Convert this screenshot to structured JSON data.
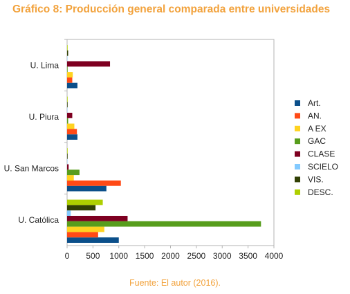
{
  "title": "Gráfico 8: Producción general comparada entre universidades",
  "source": "Fuente: El autor (2016).",
  "chart_data": {
    "type": "bar",
    "orientation": "horizontal",
    "title": "Gráfico 8: Producción general comparada entre universidades",
    "xlabel": "",
    "ylabel": "",
    "xlim": [
      0,
      4000
    ],
    "xticks": [
      0,
      500,
      1000,
      1500,
      2000,
      2500,
      3000,
      3500,
      4000
    ],
    "grid": false,
    "legend_position": "right",
    "categories": [
      "U. Católica",
      "U. San Marcos",
      "U. Piura",
      "U. Lima"
    ],
    "series": [
      {
        "name": "Art.",
        "color": "#0b4f8a",
        "values": [
          1000,
          760,
          200,
          200
        ]
      },
      {
        "name": "AN.",
        "color": "#ff4a16",
        "values": [
          600,
          1040,
          190,
          100
        ]
      },
      {
        "name": "A EX",
        "color": "#ffd320",
        "values": [
          720,
          130,
          140,
          110
        ]
      },
      {
        "name": "GAC",
        "color": "#579d1c",
        "values": [
          3750,
          240,
          20,
          10
        ]
      },
      {
        "name": "CLASE",
        "color": "#7e0021",
        "values": [
          1170,
          30,
          100,
          830
        ]
      },
      {
        "name": "SCIELO",
        "color": "#83caff",
        "values": [
          70,
          5,
          5,
          5
        ]
      },
      {
        "name": "VIS.",
        "color": "#314004",
        "values": [
          550,
          10,
          10,
          20
        ]
      },
      {
        "name": "DESC.",
        "color": "#aecf00",
        "values": [
          690,
          10,
          10,
          10
        ]
      }
    ]
  }
}
